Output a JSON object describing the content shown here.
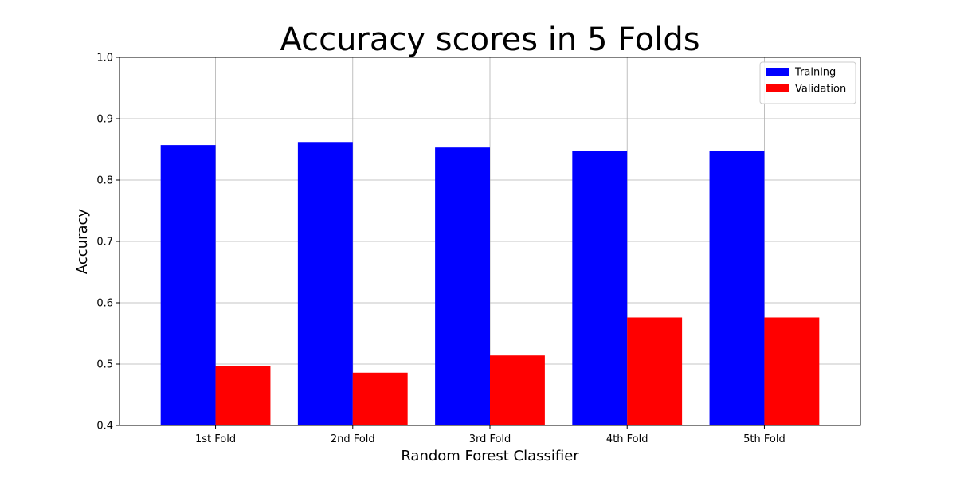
{
  "chart_data": {
    "type": "bar",
    "title": "Accuracy scores in 5 Folds",
    "xlabel": "Random Forest Classifier",
    "ylabel": "Accuracy",
    "categories": [
      "1st Fold",
      "2nd Fold",
      "3rd Fold",
      "4th Fold",
      "5th Fold"
    ],
    "series": [
      {
        "name": "Training",
        "color": "#0000ff",
        "values": [
          0.857,
          0.862,
          0.853,
          0.847,
          0.847
        ]
      },
      {
        "name": "Validation",
        "color": "#ff0000",
        "values": [
          0.497,
          0.486,
          0.514,
          0.576,
          0.576
        ]
      }
    ],
    "ylim": [
      0.4,
      1.0
    ],
    "yticks": [
      "0.4",
      "0.5",
      "0.6",
      "0.7",
      "0.8",
      "0.9",
      "1.0"
    ],
    "grid": true,
    "legend_position": "top-right"
  }
}
